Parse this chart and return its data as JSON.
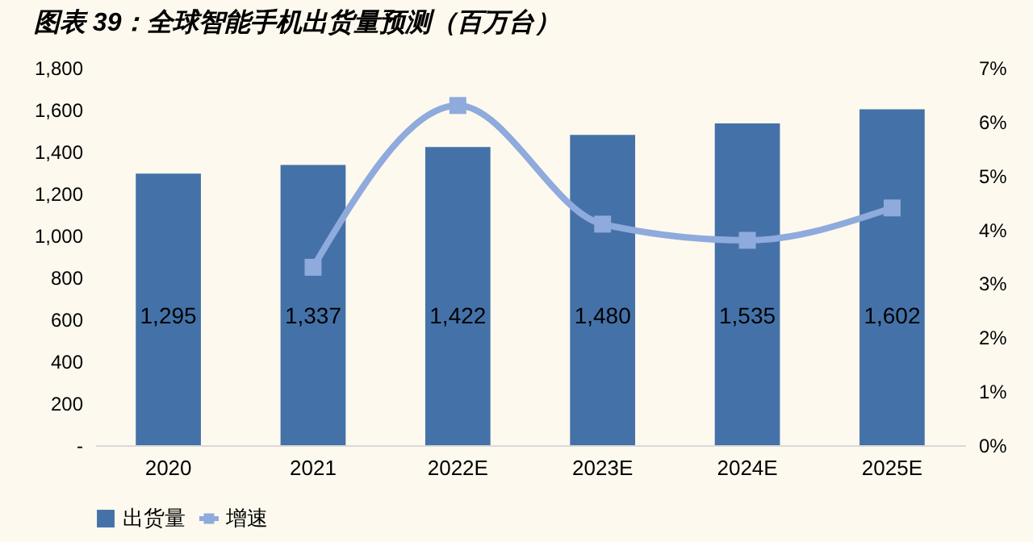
{
  "chart_data": {
    "type": "bar",
    "title": "图表 39：全球智能手机出货量预测（百万台）",
    "categories": [
      "2020",
      "2021",
      "2022E",
      "2023E",
      "2024E",
      "2025E"
    ],
    "series": [
      {
        "name": "出货量",
        "color": "#4472a8",
        "values": [
          1295,
          1337,
          1422,
          1480,
          1535,
          1602
        ],
        "value_labels": [
          "1,295",
          "1,337",
          "1,422",
          "1,480",
          "1,535",
          "1,602"
        ]
      },
      {
        "name": "增速",
        "type": "line",
        "axis": "y2",
        "color": "#8faadc",
        "marker": "square",
        "values": [
          null,
          3.3,
          6.3,
          4.1,
          3.8,
          4.4
        ]
      }
    ],
    "ylim": [
      0,
      1800
    ],
    "yticks": [
      {
        "value": 0,
        "label": "-"
      },
      {
        "value": 200,
        "label": "200"
      },
      {
        "value": 400,
        "label": "400"
      },
      {
        "value": 600,
        "label": "600"
      },
      {
        "value": 800,
        "label": "800"
      },
      {
        "value": 1000,
        "label": "1,000"
      },
      {
        "value": 1200,
        "label": "1,200"
      },
      {
        "value": 1400,
        "label": "1,400"
      },
      {
        "value": 1600,
        "label": "1,600"
      },
      {
        "value": 1800,
        "label": "1,800"
      }
    ],
    "y2lim": [
      0,
      7
    ],
    "y2ticks": [
      {
        "value": 0,
        "label": "0%"
      },
      {
        "value": 1,
        "label": "1%"
      },
      {
        "value": 2,
        "label": "2%"
      },
      {
        "value": 3,
        "label": "3%"
      },
      {
        "value": 4,
        "label": "4%"
      },
      {
        "value": 5,
        "label": "5%"
      },
      {
        "value": 6,
        "label": "6%"
      },
      {
        "value": 7,
        "label": "7%"
      }
    ],
    "legend": "bottom"
  }
}
